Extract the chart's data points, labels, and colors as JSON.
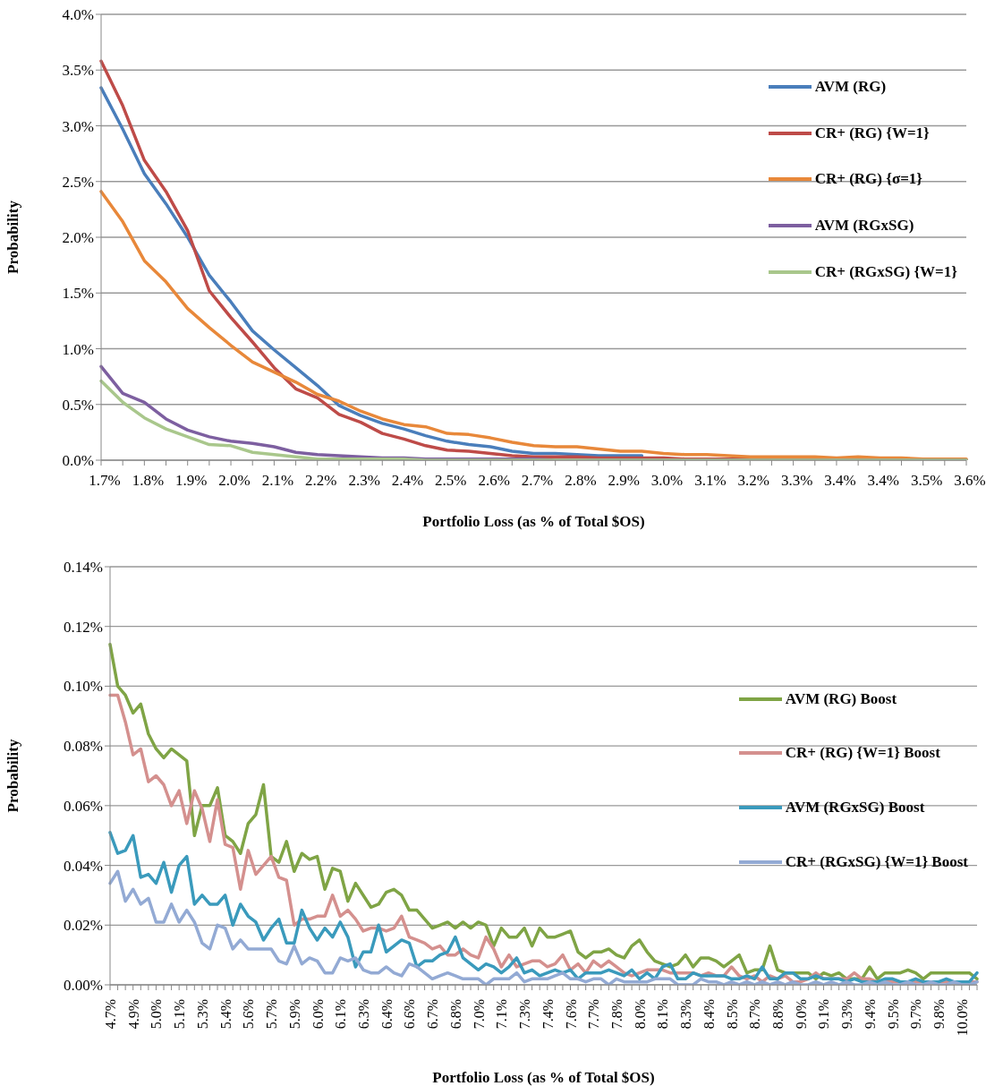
{
  "chart_data": [
    {
      "type": "line",
      "xlabel": "Portfolio Loss (as % of Total $OS)",
      "ylabel": "Probability",
      "grid": "y",
      "legend": "top right",
      "line_style": "solid",
      "ylim": [
        0,
        4
      ],
      "yticks": [
        {
          "value": 0,
          "label": "0.0%"
        },
        {
          "value": 0.5,
          "label": "0.5%"
        },
        {
          "value": 1,
          "label": "1.0%"
        },
        {
          "value": 1.5,
          "label": "1.5%"
        },
        {
          "value": 2,
          "label": "2.0%"
        },
        {
          "value": 2.5,
          "label": "2.5%"
        },
        {
          "value": 3,
          "label": "3.0%"
        },
        {
          "value": 3.5,
          "label": "3.5%"
        },
        {
          "value": 4,
          "label": "4.0%"
        }
      ],
      "categories": [
        "1.7%",
        null,
        "1.8%",
        null,
        "1.9%",
        null,
        "2.0%",
        null,
        "2.1%",
        null,
        "2.2%",
        null,
        "2.3%",
        null,
        "2.4%",
        null,
        "2.5%",
        null,
        "2.6%",
        null,
        "2.7%",
        null,
        "2.8%",
        null,
        "2.9%",
        null,
        "3.0%",
        null,
        "3.1%",
        null,
        "3.2%",
        null,
        "3.3%",
        null,
        "3.4%",
        null,
        "3.4%",
        null,
        "3.5%",
        null,
        "3.6%"
      ],
      "series": [
        {
          "name": "AVM (RG)",
          "color": "#4a7ebb",
          "values": [
            3.34,
            2.97,
            2.57,
            2.3,
            2.0,
            1.66,
            1.42,
            1.16,
            0.99,
            0.83,
            0.67,
            0.49,
            0.4,
            0.33,
            0.28,
            0.22,
            0.17,
            0.14,
            0.12,
            0.08,
            0.06,
            0.06,
            0.05,
            0.04,
            0.04,
            0.04,
            null,
            null,
            null,
            null,
            null,
            null,
            null,
            null,
            null,
            null,
            null,
            null,
            null,
            null,
            null
          ]
        },
        {
          "name": "CR+ (RG) {W=1}",
          "color": "#be4b48",
          "values": [
            3.58,
            3.18,
            2.69,
            2.41,
            2.06,
            1.52,
            1.28,
            1.06,
            0.83,
            0.64,
            0.56,
            0.41,
            0.34,
            0.24,
            0.19,
            0.13,
            0.09,
            0.08,
            0.06,
            0.04,
            0.03,
            0.03,
            0.03,
            0.02,
            0.02,
            0.02,
            0.02,
            0.01,
            0.01,
            0.01,
            0.01,
            0,
            0,
            0,
            0,
            0,
            0,
            0,
            0,
            0,
            0
          ]
        },
        {
          "name": "CR+ (RG) {σ=1}",
          "color": "#e8883a",
          "values": [
            2.41,
            2.14,
            1.79,
            1.6,
            1.36,
            1.19,
            1.03,
            0.88,
            0.79,
            0.7,
            0.59,
            0.53,
            0.44,
            0.37,
            0.32,
            0.3,
            0.24,
            0.23,
            0.2,
            0.16,
            0.13,
            0.12,
            0.12,
            0.1,
            0.08,
            0.08,
            0.06,
            0.05,
            0.05,
            0.04,
            0.03,
            0.03,
            0.03,
            0.03,
            0.02,
            0.03,
            0.02,
            0.02,
            0.01,
            0.01,
            0.01
          ]
        },
        {
          "name": "AVM (RGxSG)",
          "color": "#7d5fa0",
          "values": [
            0.84,
            0.6,
            0.52,
            0.37,
            0.27,
            0.21,
            0.17,
            0.15,
            0.12,
            0.07,
            0.05,
            0.04,
            0.03,
            0.02,
            0.02,
            0.01,
            0.01,
            0.01,
            0.01,
            0.01,
            0.01,
            0,
            0,
            0,
            0,
            0,
            0,
            0,
            0,
            0,
            0,
            0,
            0,
            0,
            0,
            0,
            0,
            0,
            0,
            0,
            0
          ]
        },
        {
          "name": "CR+ (RGxSG) {W=1}",
          "color": "#a9c78c",
          "values": [
            0.71,
            0.52,
            0.38,
            0.28,
            0.21,
            0.14,
            0.13,
            0.07,
            0.05,
            0.03,
            0.01,
            0.01,
            0.01,
            0.01,
            0.01,
            0,
            0,
            0,
            0,
            0,
            0,
            0,
            0,
            0,
            0,
            0,
            0,
            0,
            0,
            0,
            0,
            0,
            0,
            0,
            0,
            0,
            0,
            0,
            0,
            0,
            0
          ]
        }
      ]
    },
    {
      "type": "line",
      "xlabel": "Portfolio Loss (as % of Total $OS)",
      "ylabel": "Probability",
      "grid": "y",
      "legend": "right",
      "line_style": "solid",
      "ylim": [
        0,
        0.14
      ],
      "yticks": [
        {
          "value": 0,
          "label": "0.00%"
        },
        {
          "value": 0.02,
          "label": "0.02%"
        },
        {
          "value": 0.04,
          "label": "0.04%"
        },
        {
          "value": 0.06,
          "label": "0.06%"
        },
        {
          "value": 0.08,
          "label": "0.08%"
        },
        {
          "value": 0.1,
          "label": "0.10%"
        },
        {
          "value": 0.12,
          "label": "0.12%"
        },
        {
          "value": 0.14,
          "label": "0.14%"
        }
      ],
      "categories": [
        "4.7%",
        null,
        null,
        "4.9%",
        null,
        null,
        "5.0%",
        null,
        null,
        "5.1%",
        null,
        null,
        "5.3%",
        null,
        null,
        "5.4%",
        null,
        null,
        "5.6%",
        null,
        null,
        "5.7%",
        null,
        null,
        "5.9%",
        null,
        null,
        "6.0%",
        null,
        null,
        "6.1%",
        null,
        null,
        "6.3%",
        null,
        null,
        "6.4%",
        null,
        null,
        "6.6%",
        null,
        null,
        "6.7%",
        null,
        null,
        "6.8%",
        null,
        null,
        "7.0%",
        null,
        null,
        "7.1%",
        null,
        null,
        "7.3%",
        null,
        null,
        "7.4%",
        null,
        null,
        "7.6%",
        null,
        null,
        "7.7%",
        null,
        null,
        "7.8%",
        null,
        null,
        "8.0%",
        null,
        null,
        "8.1%",
        null,
        null,
        "8.3%",
        null,
        null,
        "8.4%",
        null,
        null,
        "8.5%",
        null,
        null,
        "8.7%",
        null,
        null,
        "8.8%",
        null,
        null,
        "9.0%",
        null,
        null,
        "9.1%",
        null,
        null,
        "9.3%",
        null,
        null,
        "9.4%",
        null,
        null,
        "9.5%",
        null,
        null,
        "9.7%",
        null,
        null,
        "9.8%",
        null,
        null,
        "10.0%",
        null,
        null
      ],
      "series": [
        {
          "name": "AVM (RG) Boost",
          "color": "#7fa445",
          "values": [
            0.114,
            0.1,
            0.097,
            0.091,
            0.094,
            0.084,
            0.079,
            0.076,
            0.079,
            0.077,
            0.075,
            0.05,
            0.06,
            0.06,
            0.066,
            0.05,
            0.048,
            0.044,
            0.054,
            0.057,
            0.067,
            0.043,
            0.041,
            0.048,
            0.038,
            0.044,
            0.042,
            0.043,
            0.032,
            0.039,
            0.038,
            0.028,
            0.034,
            0.03,
            0.026,
            0.027,
            0.031,
            0.032,
            0.03,
            0.025,
            0.025,
            0.022,
            0.019,
            0.02,
            0.021,
            0.019,
            0.021,
            0.019,
            0.021,
            0.02,
            0.013,
            0.019,
            0.016,
            0.016,
            0.019,
            0.013,
            0.019,
            0.016,
            0.016,
            0.017,
            0.018,
            0.011,
            0.009,
            0.011,
            0.011,
            0.012,
            0.01,
            0.009,
            0.013,
            0.015,
            0.011,
            0.008,
            0.007,
            0.006,
            0.007,
            0.01,
            0.006,
            0.009,
            0.009,
            0.008,
            0.006,
            0.008,
            0.01,
            0.004,
            0.005,
            0.005,
            0.013,
            0.005,
            0.004,
            0.004,
            0.004,
            0.004,
            0.002,
            0.004,
            0.003,
            0.004,
            0.002,
            0.002,
            0.002,
            0.006,
            0.002,
            0.004,
            0.004,
            0.004,
            0.005,
            0.004,
            0.002,
            0.004,
            0.004,
            0.004,
            0.004,
            0.004,
            0.004,
            0.002
          ]
        },
        {
          "name": "CR+ (RG) {W=1} Boost",
          "color": "#d4908e",
          "values": [
            0.097,
            0.097,
            0.088,
            0.077,
            0.079,
            0.068,
            0.07,
            0.067,
            0.06,
            0.065,
            0.054,
            0.065,
            0.059,
            0.048,
            0.062,
            0.047,
            0.046,
            0.032,
            0.045,
            0.037,
            0.04,
            0.043,
            0.036,
            0.035,
            0.02,
            0.022,
            0.022,
            0.023,
            0.023,
            0.03,
            0.023,
            0.025,
            0.022,
            0.018,
            0.019,
            0.019,
            0.018,
            0.019,
            0.023,
            0.016,
            0.015,
            0.014,
            0.012,
            0.013,
            0.01,
            0.01,
            0.012,
            0.01,
            0.009,
            0.016,
            0.012,
            0.006,
            0.01,
            0.006,
            0.007,
            0.008,
            0.008,
            0.006,
            0.007,
            0.01,
            0.005,
            0.007,
            0.004,
            0.008,
            0.006,
            0.008,
            0.006,
            0.004,
            0.003,
            0.004,
            0.005,
            0.005,
            0.005,
            0.004,
            0.004,
            0.004,
            0.004,
            0.003,
            0.004,
            0.003,
            0.003,
            0.006,
            0.003,
            0.002,
            0.003,
            0.001,
            0.003,
            0.002,
            0.003,
            0.001,
            0.001,
            0.002,
            0.004,
            0.002,
            0.002,
            0.002,
            0.002,
            0.004,
            0.002,
            0.002,
            0.001,
            0.001,
            0.001,
            0.001,
            0.001,
            0.001,
            0.001,
            0.001,
            0.001,
            0.001,
            0.001,
            0.001,
            0.001,
            0.001
          ]
        },
        {
          "name": "AVM (RGxSG) Boost",
          "color": "#3a9abc",
          "values": [
            0.051,
            0.044,
            0.045,
            0.05,
            0.036,
            0.037,
            0.034,
            0.041,
            0.031,
            0.04,
            0.043,
            0.027,
            0.03,
            0.027,
            0.027,
            0.03,
            0.02,
            0.027,
            0.023,
            0.021,
            0.015,
            0.019,
            0.022,
            0.014,
            0.014,
            0.025,
            0.019,
            0.015,
            0.019,
            0.016,
            0.021,
            0.016,
            0.006,
            0.011,
            0.011,
            0.02,
            0.011,
            0.013,
            0.015,
            0.014,
            0.006,
            0.008,
            0.008,
            0.01,
            0.011,
            0.016,
            0.009,
            0.007,
            0.005,
            0.007,
            0.006,
            0.004,
            0.006,
            0.009,
            0.004,
            0.005,
            0.003,
            0.004,
            0.005,
            0.004,
            0.005,
            0.002,
            0.004,
            0.004,
            0.004,
            0.005,
            0.004,
            0.003,
            0.005,
            0.002,
            0.004,
            0.002,
            0.006,
            0.007,
            0.002,
            0.002,
            0.004,
            0.003,
            0.003,
            0.003,
            0.003,
            0.002,
            0.002,
            0.003,
            0.002,
            0.006,
            0.002,
            0.002,
            0.004,
            0.004,
            0.002,
            0.002,
            0.003,
            0.002,
            0.002,
            0.002,
            0.001,
            0.002,
            0.001,
            0.001,
            0.001,
            0.002,
            0.002,
            0.001,
            0.001,
            0.002,
            0.001,
            0.001,
            0.001,
            0.002,
            0.001,
            0.001,
            0.001,
            0.004
          ]
        },
        {
          "name": "CR+ (RGxSG) {W=1} Boost",
          "color": "#93aad4",
          "values": [
            0.034,
            0.038,
            0.028,
            0.032,
            0.027,
            0.029,
            0.021,
            0.021,
            0.027,
            0.021,
            0.025,
            0.021,
            0.014,
            0.012,
            0.02,
            0.019,
            0.012,
            0.015,
            0.012,
            0.012,
            0.012,
            0.012,
            0.008,
            0.007,
            0.013,
            0.007,
            0.009,
            0.008,
            0.004,
            0.004,
            0.009,
            0.008,
            0.009,
            0.005,
            0.004,
            0.004,
            0.006,
            0.004,
            0.003,
            0.007,
            0.006,
            0.004,
            0.002,
            0.003,
            0.004,
            0.003,
            0.002,
            0.002,
            0.002,
            0.0,
            0.002,
            0.002,
            0.002,
            0.004,
            0.001,
            0.002,
            0.002,
            0.002,
            0.003,
            0.004,
            0.002,
            0.002,
            0.001,
            0.002,
            0.002,
            0.0,
            0.002,
            0.001,
            0.001,
            0.001,
            0.001,
            0.002,
            0.002,
            0.002,
            0.0,
            0.0,
            0.0,
            0.002,
            0.001,
            0.001,
            0.0,
            0.001,
            0.0,
            0.001,
            0.0,
            0.001,
            0.0,
            0.001,
            0.0,
            0.001,
            0.0,
            0.0,
            0.001,
            0.0,
            0.001,
            0.0,
            0.001,
            0.0,
            0.0,
            0.001,
            0.0,
            0.001,
            0.0,
            0.0,
            0.001,
            0.0,
            0.0,
            0.001,
            0.0,
            0.0,
            0.001,
            0.0,
            0.0,
            0.001
          ]
        }
      ]
    }
  ]
}
